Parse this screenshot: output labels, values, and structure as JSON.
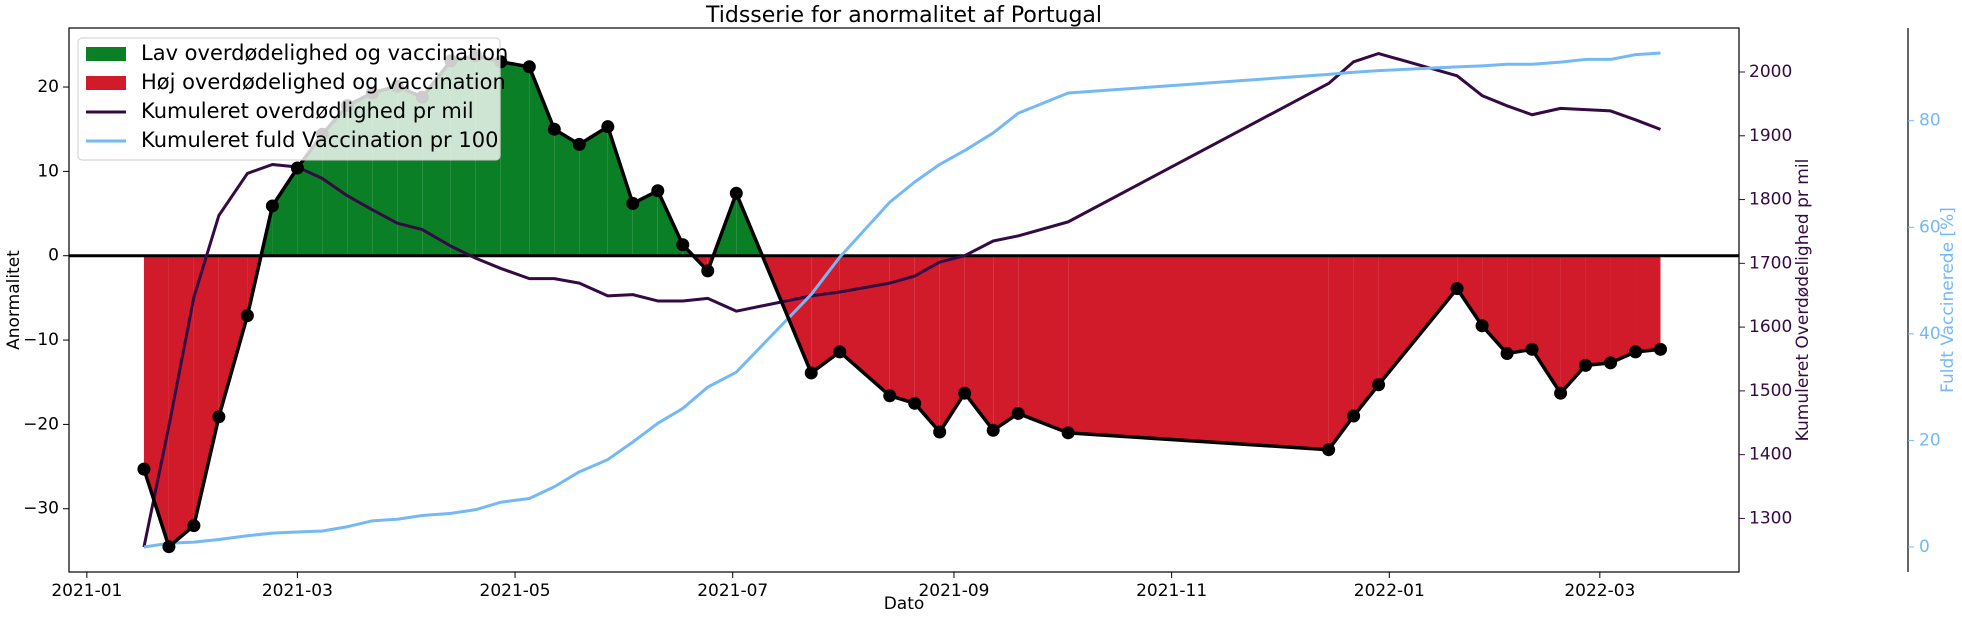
{
  "chart_data": {
    "type": "line",
    "title": "Tidsserie for anormalitet af Portugal",
    "xlabel": "Dato",
    "ylabel": "Anormalitet",
    "y2label": "Kumuleret Overdødelighed pr mil",
    "y3label": "Fuldt Vaccinerede [%]",
    "x": [
      "2021-01-17",
      "2021-01-24",
      "2021-01-31",
      "2021-02-07",
      "2021-02-15",
      "2021-02-22",
      "2021-03-01",
      "2021-03-08",
      "2021-03-15",
      "2021-03-22",
      "2021-03-29",
      "2021-04-05",
      "2021-04-13",
      "2021-04-20",
      "2021-04-27",
      "2021-05-05",
      "2021-05-12",
      "2021-05-19",
      "2021-05-27",
      "2021-06-03",
      "2021-06-10",
      "2021-06-17",
      "2021-06-24",
      "2021-07-02",
      "2021-07-23",
      "2021-07-31",
      "2021-08-14",
      "2021-08-21",
      "2021-08-28",
      "2021-09-04",
      "2021-09-12",
      "2021-09-19",
      "2021-10-03",
      "2021-12-15",
      "2021-12-22",
      "2021-12-29",
      "2022-01-20",
      "2022-01-27",
      "2022-02-03",
      "2022-02-10",
      "2022-02-18",
      "2022-02-25",
      "2022-03-04",
      "2022-03-11",
      "2022-03-18"
    ],
    "xlim": [
      "2020-12-27",
      "2022-04-09"
    ],
    "xticks": [
      {
        "value": "2021-01-01",
        "label": "2021-01"
      },
      {
        "value": "2021-03-01",
        "label": "2021-03"
      },
      {
        "value": "2021-05-01",
        "label": "2021-05"
      },
      {
        "value": "2021-07-01",
        "label": "2021-07"
      },
      {
        "value": "2021-09-01",
        "label": "2021-09"
      },
      {
        "value": "2021-11-01",
        "label": "2021-11"
      },
      {
        "value": "2022-01-01",
        "label": "2022-01"
      },
      {
        "value": "2022-03-01",
        "label": "2022-03"
      }
    ],
    "ylim": [
      -37.5,
      27
    ],
    "yticks": [
      {
        "value": -30,
        "label": "−30"
      },
      {
        "value": -20,
        "label": "−20"
      },
      {
        "value": -10,
        "label": "−10"
      },
      0,
      10,
      20
    ],
    "y2lim": [
      1216,
      2069
    ],
    "y2ticks": [
      1300,
      1400,
      1500,
      1600,
      1700,
      1800,
      1900,
      2000
    ],
    "y3lim": [
      -4.7,
      97.4
    ],
    "y3ticks": [
      0,
      20,
      40,
      60,
      80
    ],
    "anomaly": {
      "color": "#000000",
      "values": [
        -25.3,
        -34.5,
        -32,
        -19.1,
        -7.1,
        5.9,
        10.4,
        14.4,
        17.8,
        19.3,
        20.1,
        18.8,
        23.1,
        23.7,
        23,
        22.4,
        15,
        13.2,
        15.3,
        6.2,
        7.7,
        1.3,
        -1.8,
        7.4,
        -13.9,
        -11.4,
        -16.6,
        -17.5,
        -20.9,
        -16.3,
        -20.7,
        -18.7,
        -21,
        -23,
        -19,
        -15.3,
        -3.9,
        -8.3,
        -11.6,
        -11.1,
        -16.3,
        -13,
        -12.7,
        -11.4,
        -11.1
      ]
    },
    "fills": [
      {
        "name": "Lav overdødelighed og vaccination",
        "color": "#0a7f25"
      },
      {
        "name": "Høj overdødelighed og vaccination",
        "color": "#d11a2a"
      }
    ],
    "series": [
      {
        "name": "Kumuleret overdødlighed pr mil",
        "color": "#340a42",
        "axis": "y2",
        "values": [
          1255,
          1445,
          1647,
          1775,
          1841,
          1855,
          1851,
          1833,
          1806,
          1784,
          1763,
          1753,
          1727,
          1708,
          1692,
          1676,
          1676,
          1669,
          1649,
          1651,
          1641,
          1641,
          1645,
          1625,
          1649,
          1655,
          1669,
          1680,
          1702,
          1712,
          1735,
          1743,
          1765,
          1982,
          2016,
          2029,
          1994,
          1963,
          1947,
          1933,
          1943,
          1941,
          1939,
          1925,
          1910
        ]
      },
      {
        "name": "Kumuleret fuld Vaccination pr 100",
        "color": "#74b9f5",
        "axis": "y3",
        "values": [
          0,
          0.7,
          0.9,
          1.4,
          2.1,
          2.6,
          2.8,
          3.0,
          3.8,
          4.9,
          5.2,
          5.9,
          6.3,
          7.0,
          8.4,
          9.1,
          11.3,
          14.1,
          16.4,
          19.7,
          23.2,
          26,
          30,
          32.8,
          47.4,
          54.4,
          64.7,
          68.5,
          71.8,
          74.4,
          77.7,
          81.4,
          85.2,
          88.7,
          89.1,
          89.4,
          90.1,
          90.3,
          90.6,
          90.6,
          91,
          91.5,
          91.5,
          92.4,
          92.7
        ]
      }
    ],
    "legend": "upper left"
  }
}
